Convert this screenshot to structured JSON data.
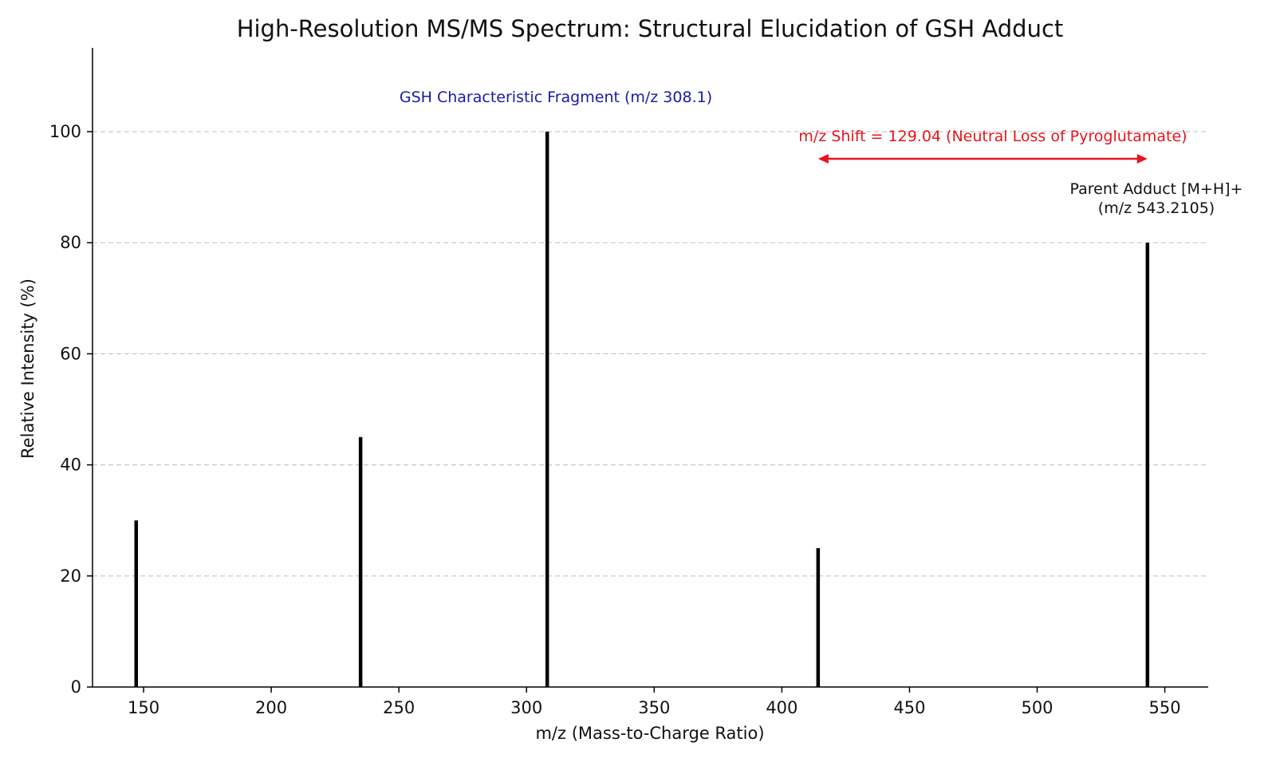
{
  "chart_data": {
    "type": "bar",
    "title": "High-Resolution MS/MS Spectrum: Structural Elucidation of GSH Adduct",
    "xlabel": "m/z (Mass-to-Charge Ratio)",
    "ylabel": "Relative Intensity (%)",
    "xlim": [
      130,
      567
    ],
    "ylim": [
      0,
      100
    ],
    "xticks": [
      "150",
      "200",
      "250",
      "300",
      "350",
      "400",
      "450",
      "500",
      "550"
    ],
    "yticks": [
      "0",
      "20",
      "40",
      "60",
      "80",
      "100"
    ],
    "grid": "horizontal dashed",
    "peaks": [
      {
        "x": 147.1,
        "y": 30
      },
      {
        "x": 235.0,
        "y": 45
      },
      {
        "x": 308.1,
        "y": 100
      },
      {
        "x": 414.2,
        "y": 25
      },
      {
        "x": 543.2105,
        "y": 80
      }
    ],
    "annotations": {
      "gsh_fragment": "GSH Characteristic Fragment (m/z 308.1)",
      "shift_label": "m/z Shift = 129.04 (Neutral Loss of Pyroglutamate)",
      "shift_arrow_from": 414.2,
      "shift_arrow_to": 543.2,
      "parent_line1": "Parent Adduct [M+H]+",
      "parent_line2": "(m/z 543.2105)"
    },
    "colors": {
      "peaks": "#000000",
      "gsh_annotation": "#1a1aa8",
      "shift_annotation": "#e8141e",
      "grid": "#c6c6c6"
    }
  }
}
